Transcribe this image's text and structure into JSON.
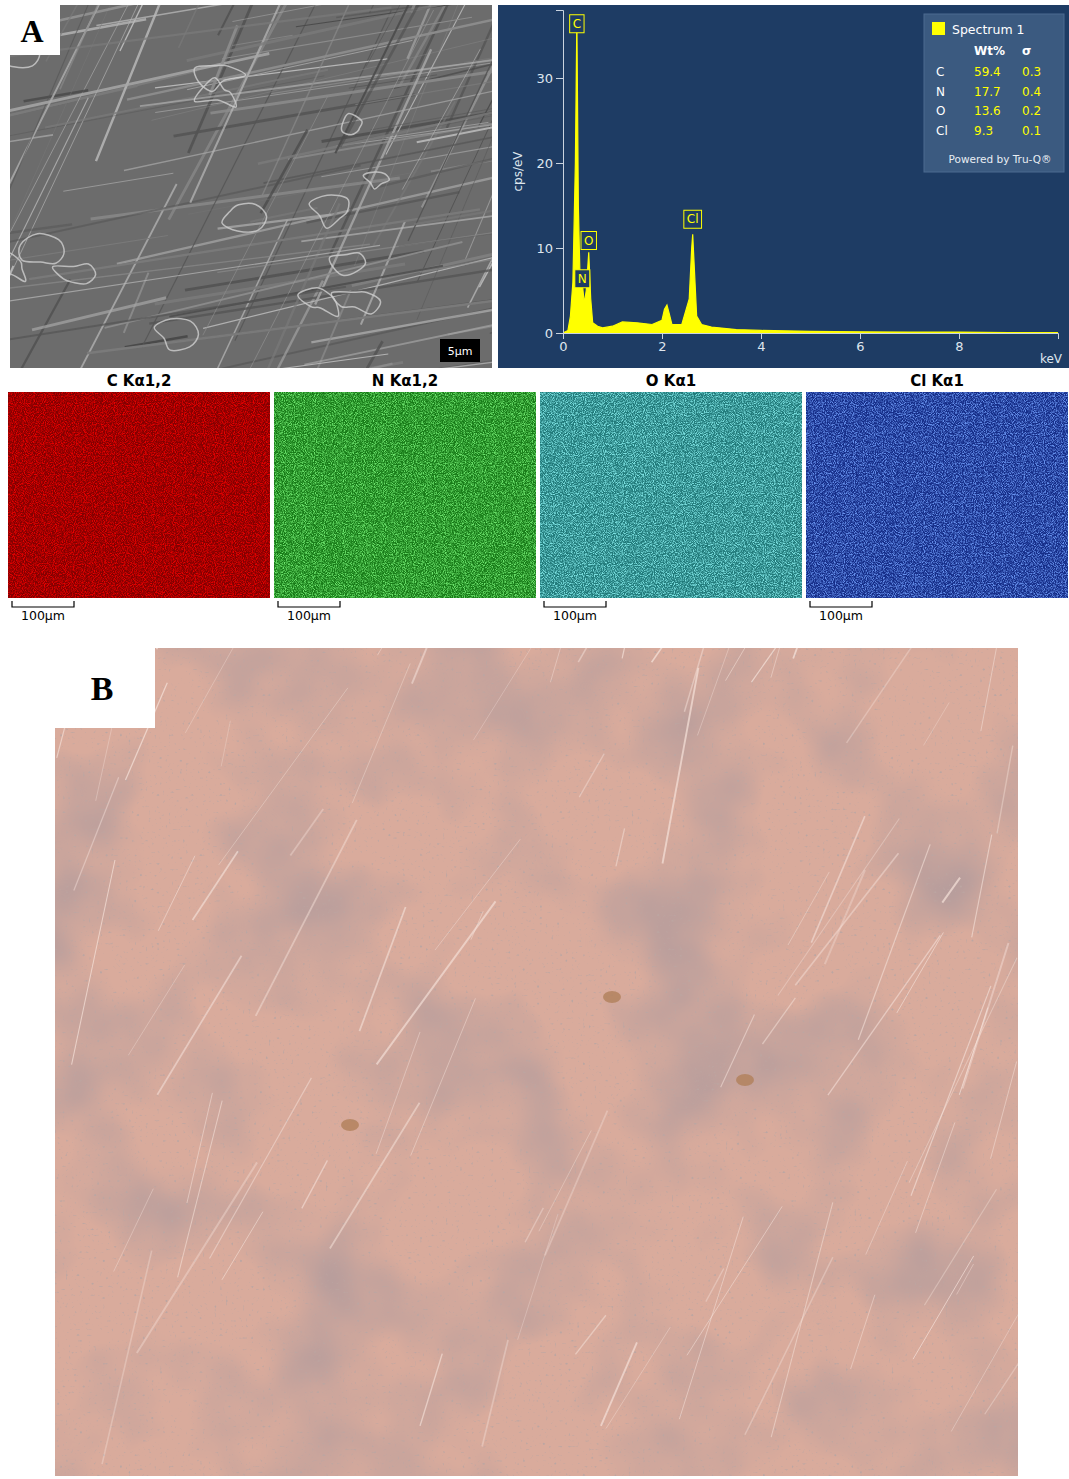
{
  "panel_labels": [
    "A",
    "B"
  ],
  "sem": {
    "scale_bar": "5µm"
  },
  "chart_data": {
    "type": "area",
    "x_label": "keV",
    "y_label": "cps/eV",
    "xlim": [
      0,
      10
    ],
    "ylim": [
      0,
      38
    ],
    "xticks": [
      0,
      2,
      4,
      6,
      8
    ],
    "yticks": [
      0,
      10,
      20,
      30
    ],
    "color": "#ffff00",
    "legend": "upper right",
    "x": [
      0,
      0.1,
      0.15,
      0.2,
      0.25,
      0.28,
      0.31,
      0.35,
      0.39,
      0.43,
      0.47,
      0.52,
      0.56,
      0.6,
      0.7,
      0.8,
      1.0,
      1.2,
      1.5,
      1.8,
      2.0,
      2.05,
      2.1,
      2.15,
      2.2,
      2.4,
      2.55,
      2.6,
      2.62,
      2.65,
      2.7,
      2.8,
      3.0,
      3.5,
      4,
      5,
      6,
      7,
      8,
      9,
      10
    ],
    "values": [
      0,
      0.3,
      2,
      6,
      20,
      37,
      15,
      5,
      5.8,
      3.5,
      5,
      9.5,
      4,
      1.2,
      0.8,
      0.6,
      0.8,
      1.3,
      1.2,
      1,
      1.5,
      2.8,
      3.3,
      2.2,
      1,
      1,
      4,
      10,
      11.6,
      8,
      2,
      1,
      0.7,
      0.4,
      0.3,
      0.2,
      0.15,
      0.1,
      0.1,
      0.05,
      0.05
    ],
    "annotations": [
      {
        "text": "C",
        "x": 0.28,
        "y": 36.5
      },
      {
        "text": "N",
        "x": 0.39,
        "y": 6.5
      },
      {
        "text": "O",
        "x": 0.52,
        "y": 11
      },
      {
        "text": "Cl",
        "x": 2.62,
        "y": 13.5
      }
    ],
    "table": {
      "title": "Spectrum 1",
      "columns": [
        "Wt%",
        "σ"
      ],
      "rows": [
        [
          "C",
          59.4,
          0.3
        ],
        [
          "N",
          17.7,
          0.4
        ],
        [
          "O",
          13.6,
          0.2
        ],
        [
          "Cl",
          9.3,
          0.1
        ]
      ],
      "footer": "Powered by Tru-Q®"
    }
  },
  "maps": [
    {
      "title": "C Kα1,2",
      "color": "#d00000",
      "scale_bar": "100µm"
    },
    {
      "title": "N Kα1,2",
      "color": "#26c426",
      "scale_bar": "100µm"
    },
    {
      "title": "O Kα1",
      "color": "#34c2c2",
      "scale_bar": "100µm"
    },
    {
      "title": "Cl Kα1",
      "color": "#2248d8",
      "scale_bar": "100µm"
    }
  ]
}
